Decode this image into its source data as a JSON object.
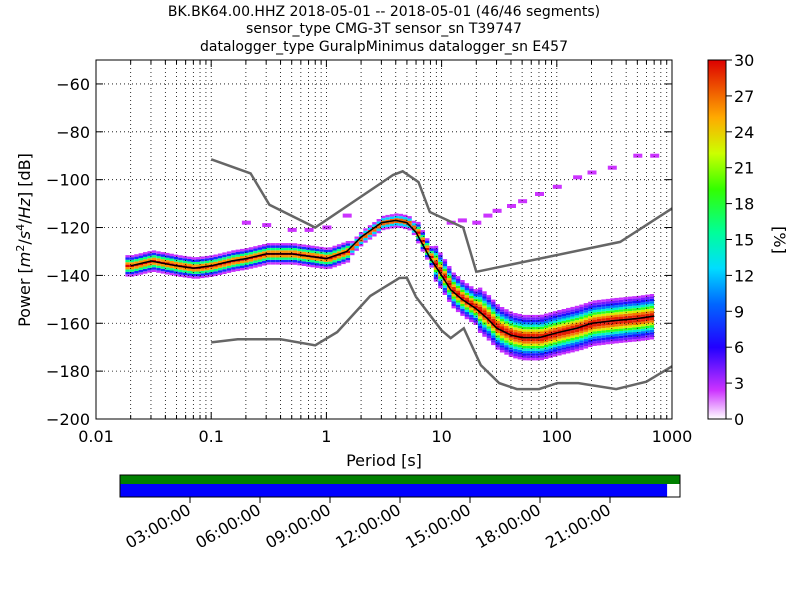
{
  "title_lines": [
    "BK.BK64.00.HHZ   2018-05-01 -- 2018-05-01  (46/46 segments)",
    "sensor_type CMG-3T sensor_sn T39747",
    "datalogger_type GuralpMinimus datalogger_sn E457"
  ],
  "chart_data": {
    "type": "heatmap",
    "xlabel": "Period [s]",
    "ylabel": "Power [m²/s⁴/Hz] [dB]",
    "x_scale": "log",
    "xlim": [
      0.01,
      1000
    ],
    "ylim": [
      -200,
      -50
    ],
    "x_ticks": [
      0.01,
      0.1,
      1,
      10,
      100,
      1000
    ],
    "x_tick_labels": [
      "0.01",
      "0.1",
      "1",
      "10",
      "100",
      "1000"
    ],
    "y_ticks": [
      -200,
      -180,
      -160,
      -140,
      -120,
      -100,
      -80,
      -60
    ],
    "y_tick_labels": [
      "−200",
      "−180",
      "−160",
      "−140",
      "−120",
      "−100",
      "−80",
      "−60"
    ],
    "grid": true,
    "colorbar": {
      "label": "[%]",
      "range": [
        0,
        30
      ],
      "ticks": [
        0,
        3,
        6,
        9,
        12,
        15,
        18,
        21,
        24,
        27,
        30
      ],
      "tick_labels": [
        "0",
        "3",
        "6",
        "9",
        "12",
        "15",
        "18",
        "21",
        "24",
        "27",
        "30"
      ]
    },
    "reference_curves": [
      {
        "role": "high-noise-model",
        "x": [
          0.1,
          0.22,
          0.32,
          0.8,
          3.8,
          4.6,
          6.3,
          7.9,
          15.4,
          20,
          354.8,
          1000
        ],
        "y": [
          -91.5,
          -97.4,
          -110.5,
          -120,
          -98,
          -96.5,
          -101,
          -113.5,
          -120,
          -138.5,
          -126,
          -112
        ]
      },
      {
        "role": "low-noise-model",
        "x": [
          0.1,
          0.17,
          0.4,
          0.8,
          1.24,
          2.4,
          4.3,
          5,
          6,
          10,
          12,
          15.6,
          21.9,
          31.6,
          45,
          70,
          101,
          154,
          328,
          600,
          1000
        ],
        "y": [
          -168,
          -166.7,
          -166.7,
          -169.2,
          -163.7,
          -148.6,
          -141.1,
          -141,
          -149,
          -163,
          -166.2,
          -162.1,
          -177.5,
          -185,
          -187.5,
          -187.5,
          -185,
          -185,
          -187.5,
          -184.4,
          -178
        ]
      }
    ],
    "mean_curve": {
      "x": [
        0.02,
        0.03,
        0.05,
        0.07,
        0.1,
        0.15,
        0.2,
        0.3,
        0.5,
        0.7,
        1,
        1.5,
        2,
        3,
        4,
        5,
        6,
        7,
        8,
        10,
        12,
        15,
        20,
        25,
        30,
        40,
        50,
        70,
        100,
        150,
        200,
        300,
        500,
        700
      ],
      "y": [
        -136,
        -134,
        -136,
        -137,
        -136,
        -134,
        -133,
        -131,
        -131,
        -132,
        -133,
        -130,
        -124,
        -118,
        -117,
        -118,
        -122,
        -128,
        -133,
        -140,
        -146,
        -150,
        -154,
        -158,
        -162,
        -165,
        -166,
        -166,
        -164,
        -162,
        -160,
        -159,
        -158,
        -157
      ]
    },
    "outlier_points": [
      {
        "x": 20,
        "y": -118
      },
      {
        "x": 25,
        "y": -115
      },
      {
        "x": 30,
        "y": -113
      },
      {
        "x": 40,
        "y": -111
      },
      {
        "x": 50,
        "y": -109
      },
      {
        "x": 70,
        "y": -106
      },
      {
        "x": 100,
        "y": -103
      },
      {
        "x": 150,
        "y": -99
      },
      {
        "x": 200,
        "y": -97
      },
      {
        "x": 300,
        "y": -95
      },
      {
        "x": 500,
        "y": -90
      },
      {
        "x": 700,
        "y": -90
      },
      {
        "x": 0.5,
        "y": -121
      },
      {
        "x": 0.7,
        "y": -121
      },
      {
        "x": 1.0,
        "y": -120
      },
      {
        "x": 1.5,
        "y": -115
      },
      {
        "x": 12,
        "y": -118
      },
      {
        "x": 15,
        "y": -117
      },
      {
        "x": 0.2,
        "y": -118
      },
      {
        "x": 0.3,
        "y": -119
      }
    ],
    "time_axis": {
      "tick_labels": [
        "03:00:00",
        "06:00:00",
        "09:00:00",
        "12:00:00",
        "15:00:00",
        "18:00:00",
        "21:00:00"
      ],
      "coverage_fraction": 0.977,
      "colors": {
        "available": "#008000",
        "used": "#0000ff"
      }
    }
  }
}
